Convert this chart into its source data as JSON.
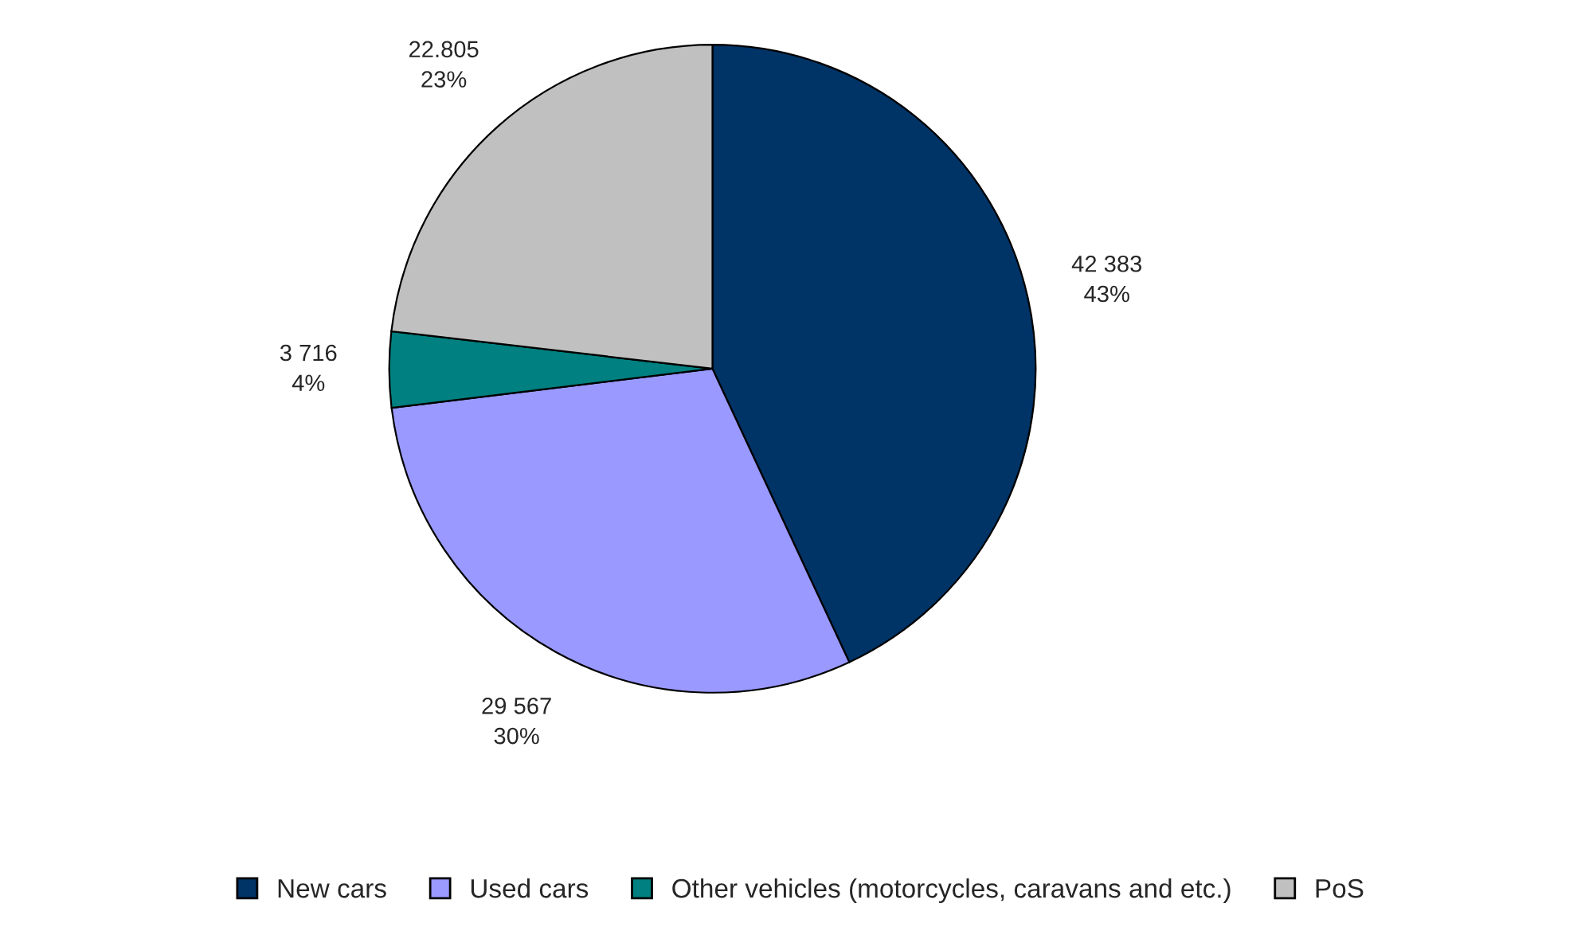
{
  "chart_data": {
    "type": "pie",
    "categories": [
      "New cars",
      "Used cars",
      "Other vehicles (motorcycles, caravans and etc.)",
      "PoS"
    ],
    "values": [
      42383,
      29567,
      3716,
      22805
    ],
    "colors": [
      "#003366",
      "#9999ff",
      "#008080",
      "#c0c0c0"
    ],
    "value_labels": [
      "42 383\n43%",
      "29 567\n30%",
      "3 716\n4%",
      "22.805\n23%"
    ],
    "legend": "bottom"
  }
}
